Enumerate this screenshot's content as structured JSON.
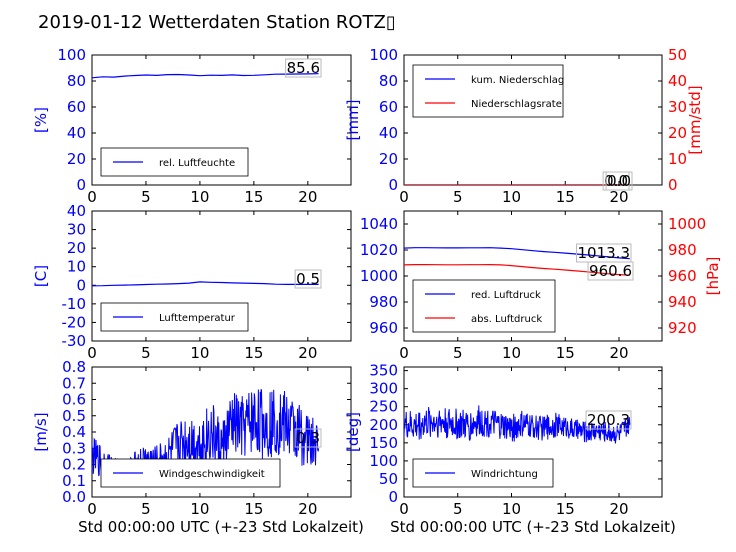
{
  "title": "2019-01-12 Wetterdaten Station ROTZ▯",
  "xlabel": "Std 00:00:00 UTC (+-23 Std Lokalzeit)",
  "colors": {
    "blue": "#0000ff",
    "red": "#ff0000",
    "black": "#000000"
  },
  "chart_data": [
    {
      "type": "line",
      "ylabel": "[%]",
      "xlim": [
        0,
        24
      ],
      "ylim": [
        0,
        100
      ],
      "xticks": [
        0,
        5,
        10,
        15,
        20
      ],
      "yticks": [
        0,
        20,
        40,
        60,
        80,
        100
      ],
      "legend": "bottom-left",
      "current_value": "85.6",
      "series": [
        {
          "name": "rel. Luftfeuchte",
          "color": "#0000ff",
          "x": [
            0,
            1,
            2,
            3,
            4,
            5,
            6,
            7,
            8,
            9,
            10,
            11,
            12,
            13,
            14,
            15,
            16,
            17,
            18,
            19,
            20,
            21
          ],
          "y": [
            82.5,
            83.2,
            83.0,
            83.8,
            84.2,
            84.6,
            84.3,
            84.9,
            85.0,
            84.6,
            84.1,
            84.5,
            84.3,
            84.7,
            84.2,
            84.4,
            84.8,
            85.2,
            85.3,
            85.4,
            85.5,
            85.6
          ]
        }
      ]
    },
    {
      "type": "line",
      "ylabel": "[mm]",
      "ylabel2": "[mm/std]",
      "xlim": [
        0,
        24
      ],
      "ylim": [
        0,
        100
      ],
      "ylim2": [
        0,
        50
      ],
      "xticks": [
        0,
        5,
        10,
        15,
        20
      ],
      "yticks": [
        0,
        20,
        40,
        60,
        80,
        100
      ],
      "yticks2": [
        0,
        10,
        20,
        30,
        40,
        50
      ],
      "legend": "top-left",
      "current_values": [
        "0.0",
        "0.0"
      ],
      "series": [
        {
          "name": "kum. Niederschlag",
          "color": "#0000ff",
          "axis": "left",
          "x": [
            0,
            21
          ],
          "y": [
            0,
            0
          ]
        },
        {
          "name": "Niederschlagsrate",
          "color": "#ff0000",
          "axis": "right",
          "x": [
            0,
            21
          ],
          "y": [
            0,
            0
          ]
        }
      ]
    },
    {
      "type": "line",
      "ylabel": "[C]",
      "xlim": [
        0,
        24
      ],
      "ylim": [
        -30,
        40
      ],
      "xticks": [
        0,
        5,
        10,
        15,
        20
      ],
      "yticks": [
        -30,
        -20,
        -10,
        0,
        10,
        20,
        30,
        40
      ],
      "legend": "bottom-left",
      "current_value": "0.5",
      "series": [
        {
          "name": "Lufttemperatur",
          "color": "#0000ff",
          "x": [
            0,
            1,
            2,
            3,
            4,
            5,
            6,
            7,
            8,
            9,
            10,
            11,
            12,
            13,
            14,
            15,
            16,
            17,
            18,
            19,
            20,
            21
          ],
          "y": [
            -0.3,
            -0.2,
            0.0,
            0.1,
            0.2,
            0.4,
            0.6,
            0.7,
            0.9,
            1.2,
            1.8,
            1.6,
            1.5,
            1.3,
            1.2,
            1.0,
            0.9,
            0.6,
            0.5,
            0.5,
            0.5,
            0.5
          ]
        }
      ]
    },
    {
      "type": "line",
      "ylabel2": "[hPa]",
      "xlim": [
        0,
        24
      ],
      "ylim": [
        950,
        1050
      ],
      "ylim2": [
        910,
        1010
      ],
      "xticks": [
        0,
        5,
        10,
        15,
        20
      ],
      "yticks": [
        960,
        980,
        1000,
        1020,
        1040
      ],
      "yticks2": [
        920,
        940,
        960,
        980,
        1000
      ],
      "legend": "bottom-left",
      "current_values": [
        "1013.3",
        "960.6"
      ],
      "series": [
        {
          "name": "red. Luftdruck",
          "color": "#0000ff",
          "axis": "left",
          "x": [
            0,
            1,
            2,
            3,
            4,
            5,
            6,
            7,
            8,
            9,
            10,
            11,
            12,
            13,
            14,
            15,
            16,
            17,
            18,
            19,
            20,
            21
          ],
          "y": [
            1021.5,
            1021.8,
            1021.8,
            1021.7,
            1021.6,
            1021.6,
            1021.7,
            1021.7,
            1021.8,
            1021.5,
            1021.0,
            1020.2,
            1019.5,
            1018.8,
            1018.2,
            1017.6,
            1016.9,
            1016.2,
            1015.5,
            1014.7,
            1013.9,
            1013.3
          ]
        },
        {
          "name": "abs. Luftdruck",
          "color": "#ff0000",
          "axis": "right",
          "x": [
            0,
            1,
            2,
            3,
            4,
            5,
            6,
            7,
            8,
            9,
            10,
            11,
            12,
            13,
            14,
            15,
            16,
            17,
            18,
            19,
            20,
            21
          ],
          "y": [
            968.5,
            968.8,
            968.8,
            968.7,
            968.6,
            968.6,
            968.7,
            968.7,
            968.8,
            968.5,
            968.0,
            967.2,
            966.5,
            965.8,
            965.2,
            964.6,
            963.9,
            963.2,
            962.5,
            961.7,
            961.1,
            960.6
          ]
        }
      ]
    },
    {
      "type": "line",
      "ylabel": "[m/s]",
      "xlim": [
        0,
        24
      ],
      "ylim": [
        0,
        0.8
      ],
      "xticks": [
        0,
        5,
        10,
        15,
        20
      ],
      "yticks": [
        0.0,
        0.1,
        0.2,
        0.3,
        0.4,
        0.5,
        0.6,
        0.7,
        0.8
      ],
      "legend": "bottom-left",
      "current_value": "0.3",
      "series": [
        {
          "name": "Windgeschwindigkeit",
          "color": "#0000ff",
          "x": [
            0,
            1,
            2,
            3,
            4,
            5,
            6,
            7,
            8,
            9,
            10,
            11,
            12,
            13,
            14,
            15,
            16,
            17,
            18,
            19,
            20,
            21
          ],
          "y": [
            0.25,
            0.22,
            0.18,
            0.17,
            0.2,
            0.23,
            0.22,
            0.25,
            0.33,
            0.35,
            0.32,
            0.4,
            0.3,
            0.45,
            0.42,
            0.48,
            0.45,
            0.47,
            0.45,
            0.4,
            0.35,
            0.3
          ],
          "spread": [
            0.12,
            0.1,
            0.07,
            0.06,
            0.08,
            0.1,
            0.1,
            0.12,
            0.15,
            0.17,
            0.17,
            0.2,
            0.17,
            0.2,
            0.2,
            0.22,
            0.22,
            0.22,
            0.2,
            0.2,
            0.17,
            0.15
          ]
        }
      ]
    },
    {
      "type": "line",
      "ylabel": "[deg]",
      "xlim": [
        0,
        24
      ],
      "ylim": [
        0,
        360
      ],
      "xticks": [
        0,
        5,
        10,
        15,
        20
      ],
      "yticks": [
        0,
        50,
        100,
        150,
        200,
        250,
        300,
        350
      ],
      "legend": "bottom-left",
      "current_value": "200.3",
      "series": [
        {
          "name": "Windrichtung",
          "color": "#0000ff",
          "x": [
            0,
            1,
            2,
            3,
            4,
            5,
            6,
            7,
            8,
            9,
            10,
            11,
            12,
            13,
            14,
            15,
            16,
            17,
            18,
            19,
            20,
            21
          ],
          "y": [
            200,
            195,
            205,
            210,
            205,
            200,
            195,
            210,
            205,
            195,
            190,
            200,
            195,
            190,
            200,
            195,
            185,
            180,
            185,
            180,
            175,
            200
          ],
          "spread": [
            40,
            45,
            45,
            45,
            45,
            45,
            45,
            45,
            40,
            40,
            40,
            40,
            35,
            35,
            35,
            30,
            30,
            30,
            30,
            30,
            30,
            30
          ]
        }
      ]
    }
  ]
}
